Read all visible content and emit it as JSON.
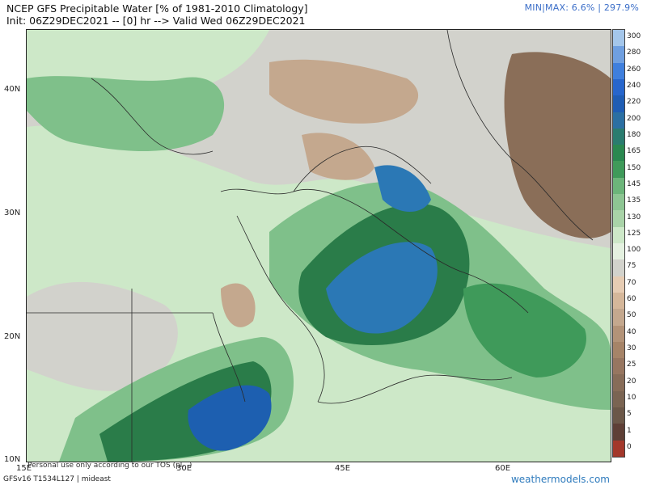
{
  "header": {
    "title_line1": "NCEP GFS Precipitable Water [% of 1981-2010 Climatology]",
    "title_line2": "Init: 06Z29DEC2021 -- [0] hr --> Valid Wed 06Z29DEC2021",
    "minmax": "MIN|MAX: 6.6% | 297.9%"
  },
  "map": {
    "lat_labels": [
      "40N",
      "30N",
      "20N",
      "10N"
    ],
    "lon_labels": [
      "15E",
      "30E",
      "45E",
      "60E"
    ],
    "disclaimer": "Personal use only according to our TOS (pl...)",
    "colors": {
      "low_brown": "#8a6e58",
      "mid_brown": "#c4a88e",
      "neutral": "#d2d2cc",
      "light_green": "#cde8c8",
      "mid_green": "#7fc08a",
      "green": "#3f9a5a",
      "dark_green": "#2a7c49",
      "blue": "#2b78b5",
      "deep_blue": "#1d5fb0"
    }
  },
  "colorbar": {
    "labels": [
      "300",
      "280",
      "260",
      "240",
      "220",
      "200",
      "180",
      "165",
      "150",
      "145",
      "135",
      "130",
      "125",
      "100",
      "75",
      "70",
      "60",
      "50",
      "40",
      "30",
      "25",
      "20",
      "10",
      "5",
      "1",
      "0"
    ],
    "colors": [
      "#a4c6ea",
      "#6f9fe0",
      "#3f7fdd",
      "#2766cc",
      "#1f5db4",
      "#2b6fa2",
      "#2a7c6f",
      "#2a8850",
      "#3f9a5a",
      "#6cb57a",
      "#8dc593",
      "#a9d3a8",
      "#cde8c8",
      "#e4f1e0",
      "#d2d2cc",
      "#e6ccb3",
      "#d5b79a",
      "#c4a88e",
      "#b39378",
      "#a68468",
      "#977660",
      "#876c58",
      "#7a6452",
      "#6b5748",
      "#5e3f36",
      "#a3382b"
    ]
  },
  "footer": {
    "model": "GFSv16 T1534L127 | mideast",
    "brand": "weathermodels.com"
  }
}
